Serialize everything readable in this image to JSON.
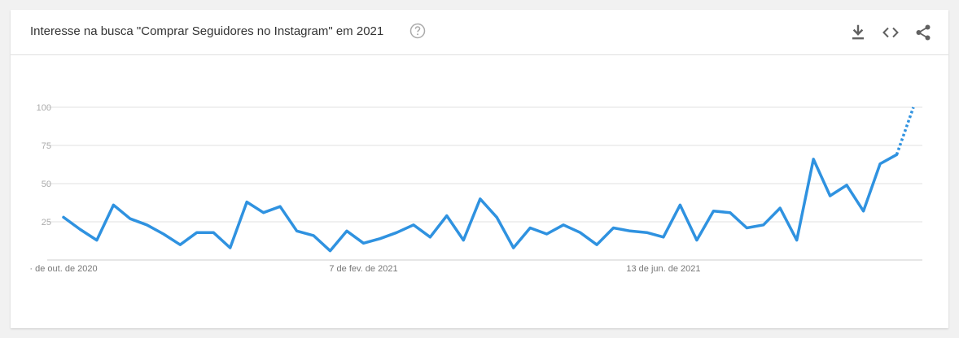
{
  "header": {
    "title": "Interesse na busca \"Comprar Seguidores no Instagram\" em 2021",
    "help_icon": "help-circle-icon",
    "actions": [
      {
        "icon": "download-icon"
      },
      {
        "icon": "embed-code-icon"
      },
      {
        "icon": "share-icon"
      }
    ]
  },
  "colors": {
    "line": "#2f92e0",
    "grid": "#e0e0e0"
  },
  "chart_data": {
    "type": "line",
    "title": "Interesse na busca \"Comprar Seguidores no Instagram\" em 2021",
    "xlabel": "",
    "ylabel": "",
    "ylim": [
      0,
      100
    ],
    "yticks": [
      25,
      50,
      75,
      100
    ],
    "xtick_labels": [
      {
        "index": 0,
        "label": "· de out. de 2020"
      },
      {
        "index": 18,
        "label": "7 de fev. de 2021"
      },
      {
        "index": 36,
        "label": "13 de jun. de 2021"
      }
    ],
    "grid": true,
    "series": [
      {
        "values": [
          28,
          20,
          13,
          36,
          27,
          23,
          17,
          10,
          18,
          18,
          8,
          38,
          31,
          35,
          19,
          16,
          6,
          19,
          11,
          14,
          18,
          23,
          15,
          29,
          13,
          40,
          28,
          8,
          21,
          17,
          23,
          18,
          10,
          21,
          19,
          18,
          15,
          36,
          13,
          32,
          31,
          21,
          23,
          34,
          13,
          66,
          42,
          49,
          32,
          63,
          69,
          100
        ],
        "partial_from_index": 50
      }
    ]
  }
}
